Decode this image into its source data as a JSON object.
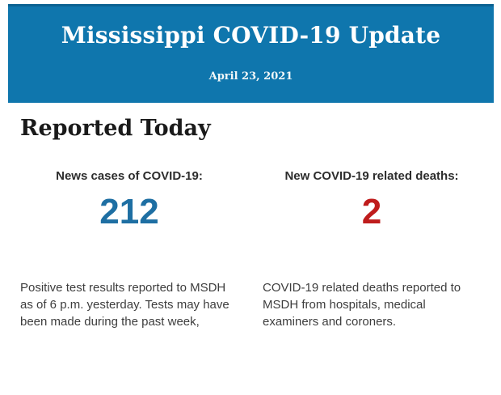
{
  "banner": {
    "title": "Mississippi COVID-19 Update",
    "date": "April 23, 2021",
    "background_color": "#0f76ad",
    "border_top_color": "#0b6292"
  },
  "page": {
    "heading": "Reported Today"
  },
  "stats": [
    {
      "label": "News cases of COVID-19:",
      "value": "212",
      "value_color": "#1e6fa3",
      "description": "Positive test results reported to MSDH as of 6 p.m. yesterday. Tests may have been made during the past week,"
    },
    {
      "label": "New COVID-19 related deaths:",
      "value": "2",
      "value_color": "#bf1c1c",
      "description": "COVID-19 related deaths reported to MSDH from hospitals, medical examiners and coroners."
    }
  ]
}
